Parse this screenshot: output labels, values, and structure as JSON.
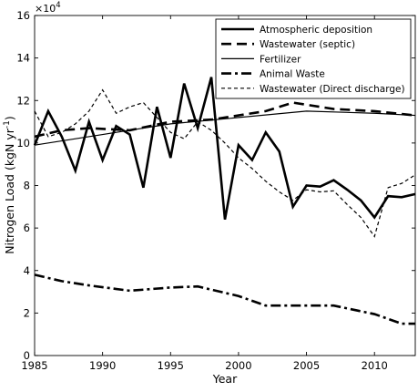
{
  "chart_data": {
    "type": "line",
    "xlabel": "Year",
    "ylabel_main": "Nitrogen Load (kgN yr",
    "ylabel_sup": "-1",
    "ylabel_close": ")",
    "exponent_base": "×10",
    "exponent_power": "4",
    "xlim": [
      1985,
      2013
    ],
    "ylim": [
      0,
      16
    ],
    "y_scale": 10000,
    "x_ticks": [
      1985,
      1990,
      1995,
      2000,
      2005,
      2010
    ],
    "x_tick_labels": [
      "1985",
      "1990",
      "1995",
      "2000",
      "2005",
      "2010"
    ],
    "y_ticks": [
      0,
      2,
      4,
      6,
      8,
      10,
      12,
      14,
      16
    ],
    "y_tick_labels": [
      "0",
      "2",
      "4",
      "6",
      "8",
      "10",
      "12",
      "14",
      "16"
    ],
    "grid": false,
    "legend_position": "top-right",
    "series": [
      {
        "name": "Atmospheric deposition",
        "style": "solid",
        "width": 2.6,
        "color": "#000000",
        "x": [
          1985,
          1986,
          1987,
          1988,
          1989,
          1990,
          1991,
          1992,
          1993,
          1994,
          1995,
          1996,
          1997,
          1998,
          1999,
          2000,
          2001,
          2002,
          2003,
          2004,
          2005,
          2006,
          2007,
          2008,
          2009,
          2010,
          2011,
          2012,
          2013
        ],
        "values": [
          9.9,
          11.5,
          10.3,
          8.7,
          11.0,
          9.2,
          10.8,
          10.4,
          7.9,
          11.7,
          9.3,
          12.8,
          10.7,
          13.1,
          6.4,
          9.9,
          9.2,
          10.5,
          9.6,
          7.0,
          8.0,
          7.95,
          8.25,
          7.8,
          7.3,
          6.5,
          7.5,
          7.45,
          7.6
        ]
      },
      {
        "name": "Wastewater (septic)",
        "style": "dashed",
        "width": 2.6,
        "color": "#000000",
        "x": [
          1985,
          1987,
          1989,
          1992,
          1995,
          1998,
          2002,
          2004,
          2007,
          2010,
          2013
        ],
        "values": [
          10.3,
          10.6,
          10.7,
          10.6,
          11.0,
          11.1,
          11.5,
          11.9,
          11.6,
          11.5,
          11.3
        ]
      },
      {
        "name": "Fertilizer",
        "style": "solid",
        "width": 1.2,
        "color": "#000000",
        "x": [
          1985,
          1990,
          1995,
          2000,
          2005,
          2010,
          2013
        ],
        "values": [
          9.9,
          10.4,
          10.9,
          11.2,
          11.5,
          11.4,
          11.3
        ]
      },
      {
        "name": "Animal Waste",
        "style": "dashdot",
        "width": 2.6,
        "color": "#000000",
        "x": [
          1985,
          1987,
          1989,
          1992,
          1995,
          1997,
          2000,
          2002,
          2004,
          2007,
          2010,
          2012,
          2013
        ],
        "values": [
          3.8,
          3.5,
          3.3,
          3.05,
          3.2,
          3.25,
          2.8,
          2.35,
          2.35,
          2.35,
          1.95,
          1.5,
          1.5
        ]
      },
      {
        "name": "Wastewater (Direct discharge)",
        "style": "dotted",
        "width": 1.2,
        "color": "#000000",
        "x": [
          1985,
          1986,
          1987,
          1988,
          1989,
          1990,
          1991,
          1992,
          1993,
          1994,
          1995,
          1996,
          1997,
          1998,
          1999,
          2000,
          2001,
          2002,
          2003,
          2004,
          2005,
          2006,
          2007,
          2008,
          2009,
          2010,
          2011,
          2012,
          2013
        ],
        "values": [
          11.5,
          10.3,
          10.5,
          10.9,
          11.5,
          12.5,
          11.4,
          11.7,
          11.9,
          11.2,
          10.5,
          10.2,
          11.0,
          10.6,
          10.0,
          9.3,
          8.8,
          8.2,
          7.7,
          7.3,
          7.8,
          7.7,
          7.75,
          7.1,
          6.5,
          5.6,
          7.9,
          8.1,
          8.5
        ]
      }
    ]
  }
}
